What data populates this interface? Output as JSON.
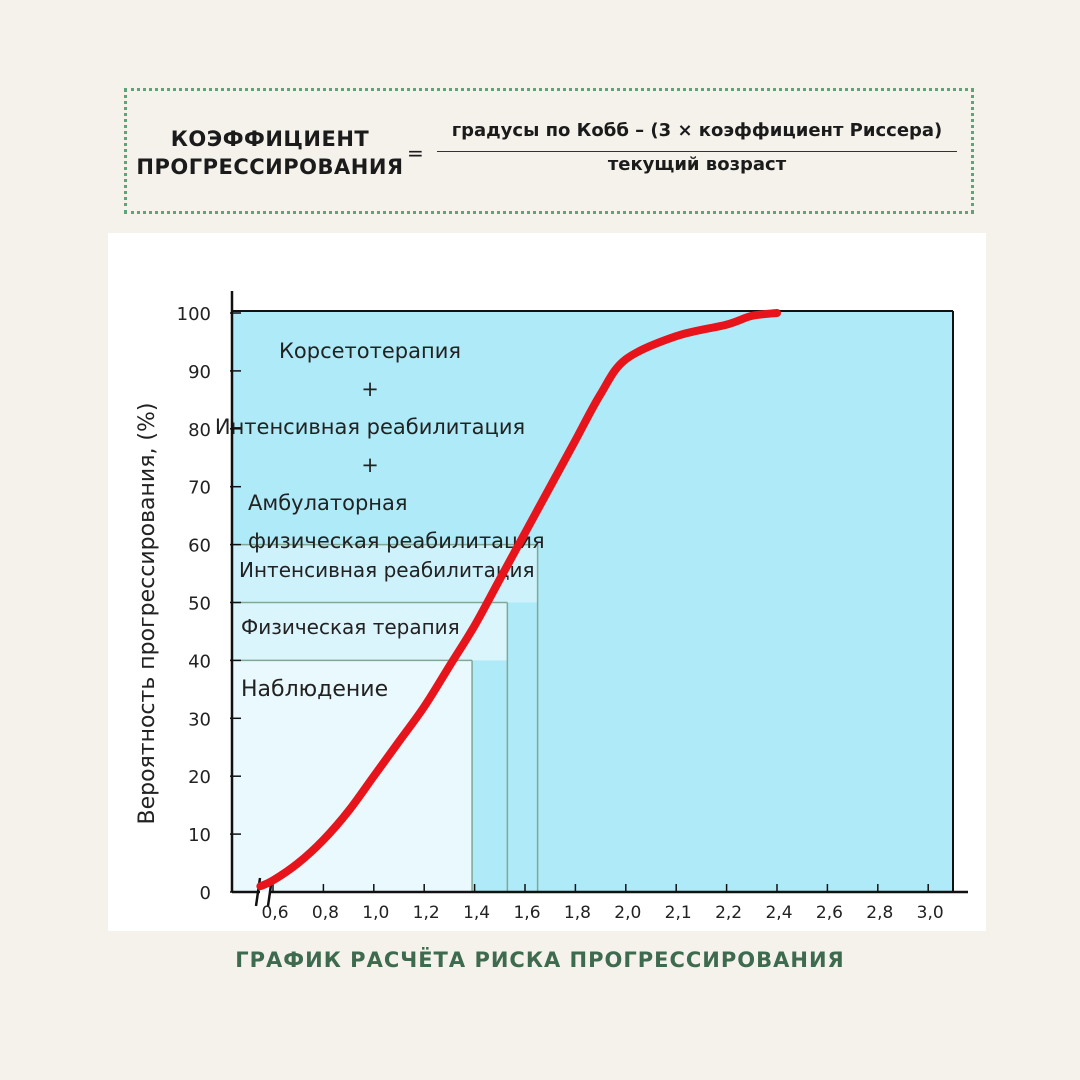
{
  "formula": {
    "lhs_line1": "КОЭФФИЦИЕНТ",
    "lhs_line2": "ПРОГРЕССИРОВАНИЯ",
    "equals": "=",
    "numerator": "градусы по Кобб – (3 × коэффициент Риссера)",
    "denominator": "текущий возраст"
  },
  "caption": "ГРАФИК РАСЧЁТА РИСКА ПРОГРЕССИРОВАНИЯ",
  "colors": {
    "curve": "#e8141c",
    "zone_top": "#aeeaf8",
    "zone_intensive": "#cdf2fb",
    "zone_physical": "#dbf5fc",
    "zone_observation": "#eaf9fd",
    "right_region": "#aeeaf8",
    "box_border": "#5aa57a",
    "caption": "#3e6b4f"
  },
  "chart_data": {
    "type": "line",
    "title": "",
    "xlabel": "",
    "ylabel": "Вероятность прогрессирования, (%)",
    "x_tick_labels": [
      "0,6",
      "0,8",
      "1,0",
      "1,2",
      "1,4",
      "1,6",
      "1,8",
      "2,0",
      "2,1",
      "2,2",
      "2,4",
      "2,6",
      "2,8",
      "3,0"
    ],
    "y_tick_labels": [
      "0",
      "10",
      "20",
      "30",
      "40",
      "50",
      "60",
      "70",
      "80",
      "90",
      "100"
    ],
    "ylim": [
      0,
      100
    ],
    "axis_break": true,
    "grid": false,
    "series": [
      {
        "x": [
          "0,55",
          "0,6",
          "0,7",
          "0,8",
          "0,9",
          "1,0",
          "1,1",
          "1,2",
          "1,3",
          "1,4",
          "1,5",
          "1,6",
          "1,7",
          "1,8",
          "1,9",
          "2,0",
          "2,1",
          "2,2",
          "2,3",
          "2,4"
        ],
        "y": [
          1,
          2,
          5,
          9,
          14,
          20,
          26,
          32,
          39,
          46,
          54,
          62,
          70,
          78,
          86,
          92,
          96,
          98,
          99.5,
          100
        ]
      }
    ],
    "zones": [
      {
        "label_lines": [
          "Корсетотерапия",
          "+",
          "Интенсивная реабилитация",
          "+",
          "Амбулаторная",
          "физическая реабилитация"
        ],
        "y_from": 60,
        "y_to": 100
      },
      {
        "label_lines": [
          "Интенсивная реабилитация"
        ],
        "y_from": 50,
        "y_to": 60,
        "x_cut": "1,65"
      },
      {
        "label_lines": [
          "Физическая терапия"
        ],
        "y_from": 40,
        "y_to": 50,
        "x_cut": "1,53"
      },
      {
        "label_lines": [
          "Наблюдение"
        ],
        "y_from": 0,
        "y_to": 40,
        "x_cut": "1,39"
      }
    ]
  }
}
